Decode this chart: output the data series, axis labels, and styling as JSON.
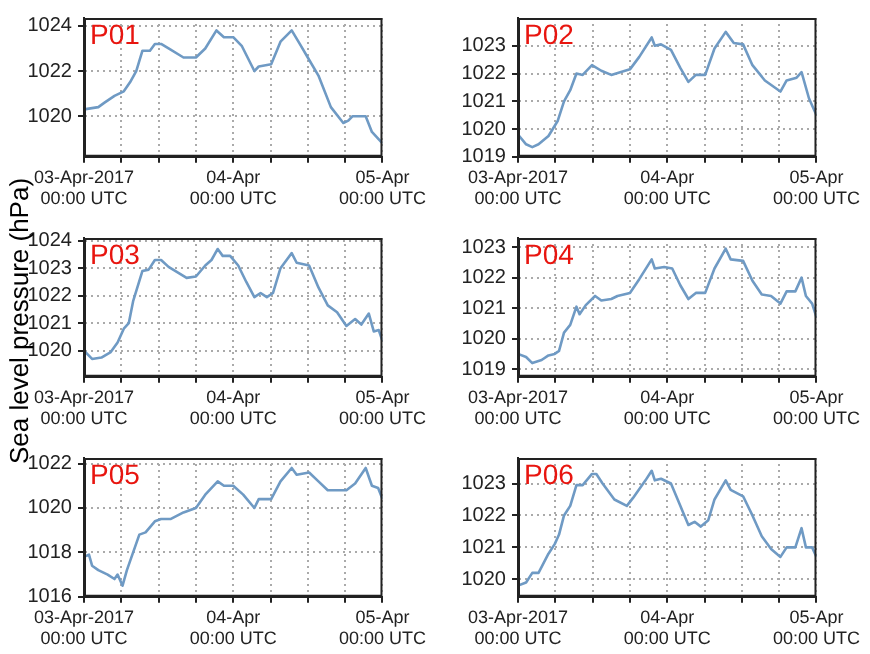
{
  "chart_data": [
    {
      "type": "line",
      "title": "P01",
      "color": "#6f9ac4",
      "grid": true,
      "xlim": [
        "2017-04-03T00:00",
        "2017-04-05T00:00"
      ],
      "xticks": [
        {
          "value": "2017-04-03T00:00",
          "label": "03-Apr-2017\n00:00 UTC"
        },
        {
          "value": "2017-04-03T06:00",
          "label": null
        },
        {
          "value": "2017-04-03T12:00",
          "label": null
        },
        {
          "value": "2017-04-03T18:00",
          "label": null
        },
        {
          "value": "2017-04-04T00:00",
          "label": "04-Apr\n00:00 UTC"
        },
        {
          "value": "2017-04-04T06:00",
          "label": null
        },
        {
          "value": "2017-04-04T12:00",
          "label": null
        },
        {
          "value": "2017-04-04T18:00",
          "label": null
        },
        {
          "value": "2017-04-05T00:00",
          "label": "05-Apr\n00:00 UTC"
        }
      ],
      "ylim": [
        1018.2,
        1024.35
      ],
      "yticks": [
        1020,
        1022,
        1024
      ],
      "x": [
        "2017-04-03T00:00",
        "2017-04-03T02:18",
        "2017-04-03T03:18",
        "2017-04-03T04:54",
        "2017-04-03T06:24",
        "2017-04-03T07:24",
        "2017-04-03T08:24",
        "2017-04-03T09:24",
        "2017-04-03T10:36",
        "2017-04-03T11:24",
        "2017-04-03T12:24",
        "2017-04-03T13:36",
        "2017-04-03T16:00",
        "2017-04-03T18:00",
        "2017-04-03T19:30",
        "2017-04-03T21:18",
        "2017-04-03T22:30",
        "2017-04-04T00:00",
        "2017-04-04T01:24",
        "2017-04-04T03:24",
        "2017-04-04T04:06",
        "2017-04-04T06:06",
        "2017-04-04T07:36",
        "2017-04-04T09:24",
        "2017-04-04T10:42",
        "2017-04-04T12:12",
        "2017-04-04T13:42",
        "2017-04-04T15:42",
        "2017-04-04T17:42",
        "2017-04-04T18:30",
        "2017-04-04T19:12",
        "2017-04-04T21:18",
        "2017-04-04T22:18",
        "2017-04-05T00:00"
      ],
      "values": [
        1020.3,
        1020.4,
        1020.6,
        1020.9,
        1021.1,
        1021.5,
        1022.0,
        1022.9,
        1022.9,
        1023.2,
        1023.2,
        1023.0,
        1022.6,
        1022.6,
        1023.0,
        1023.8,
        1023.5,
        1023.5,
        1023.1,
        1022.0,
        1022.2,
        1022.3,
        1023.3,
        1023.8,
        1023.2,
        1022.5,
        1021.8,
        1020.4,
        1019.7,
        1019.8,
        1020.0,
        1020.0,
        1019.3,
        1018.8
      ]
    },
    {
      "type": "line",
      "title": "P02",
      "color": "#6f9ac4",
      "grid": true,
      "xlim": [
        "2017-04-03T00:00",
        "2017-04-05T00:00"
      ],
      "xticks": [
        {
          "value": "2017-04-03T00:00",
          "label": "03-Apr-2017\n00:00 UTC"
        },
        {
          "value": "2017-04-03T06:00",
          "label": null
        },
        {
          "value": "2017-04-03T12:00",
          "label": null
        },
        {
          "value": "2017-04-03T18:00",
          "label": null
        },
        {
          "value": "2017-04-04T00:00",
          "label": "04-Apr\n00:00 UTC"
        },
        {
          "value": "2017-04-04T06:00",
          "label": null
        },
        {
          "value": "2017-04-04T12:00",
          "label": null
        },
        {
          "value": "2017-04-04T18:00",
          "label": null
        },
        {
          "value": "2017-04-05T00:00",
          "label": "05-Apr\n00:00 UTC"
        }
      ],
      "ylim": [
        1019,
        1024
      ],
      "yticks": [
        1019,
        1020,
        1021,
        1022,
        1023
      ],
      "x": [
        "2017-04-03T00:00",
        "2017-04-03T01:18",
        "2017-04-03T02:18",
        "2017-04-03T03:18",
        "2017-04-03T04:54",
        "2017-04-03T06:24",
        "2017-04-03T07:24",
        "2017-04-03T08:24",
        "2017-04-03T09:24",
        "2017-04-03T10:24",
        "2017-04-03T11:54",
        "2017-04-03T13:24",
        "2017-04-03T15:00",
        "2017-04-03T18:00",
        "2017-04-03T19:30",
        "2017-04-03T21:30",
        "2017-04-03T22:00",
        "2017-04-03T23:00",
        "2017-04-04T00:36",
        "2017-04-04T02:06",
        "2017-04-04T03:24",
        "2017-04-04T04:36",
        "2017-04-04T06:06",
        "2017-04-04T07:36",
        "2017-04-04T09:24",
        "2017-04-04T10:42",
        "2017-04-04T12:12",
        "2017-04-04T13:42",
        "2017-04-04T15:42",
        "2017-04-04T18:12",
        "2017-04-04T19:12",
        "2017-04-04T20:48",
        "2017-04-04T21:36",
        "2017-04-04T22:48",
        "2017-04-05T00:00"
      ],
      "values": [
        1019.8,
        1019.45,
        1019.35,
        1019.45,
        1019.75,
        1020.3,
        1021.0,
        1021.4,
        1022.0,
        1021.95,
        1022.3,
        1022.1,
        1021.95,
        1022.15,
        1022.6,
        1023.3,
        1023.0,
        1023.05,
        1022.85,
        1022.2,
        1021.7,
        1021.95,
        1021.95,
        1022.9,
        1023.5,
        1023.1,
        1023.05,
        1022.3,
        1021.75,
        1021.35,
        1021.75,
        1021.85,
        1022.05,
        1021.1,
        1020.5
      ]
    },
    {
      "type": "line",
      "title": "P03",
      "ylabel": "Sea level pressure (hPa)",
      "color": "#6f9ac4",
      "grid": true,
      "xlim": [
        "2017-04-03T00:00",
        "2017-04-05T00:00"
      ],
      "xticks": [
        {
          "value": "2017-04-03T00:00",
          "label": "03-Apr-2017\n00:00 UTC"
        },
        {
          "value": "2017-04-03T06:00",
          "label": null
        },
        {
          "value": "2017-04-03T12:00",
          "label": null
        },
        {
          "value": "2017-04-03T18:00",
          "label": null
        },
        {
          "value": "2017-04-04T00:00",
          "label": "04-Apr\n00:00 UTC"
        },
        {
          "value": "2017-04-04T06:00",
          "label": null
        },
        {
          "value": "2017-04-04T12:00",
          "label": null
        },
        {
          "value": "2017-04-04T18:00",
          "label": null
        },
        {
          "value": "2017-04-05T00:00",
          "label": "05-Apr\n00:00 UTC"
        }
      ],
      "ylim": [
        1019.05,
        1024.1
      ],
      "yticks": [
        1020,
        1021,
        1022,
        1023,
        1024
      ],
      "x": [
        "2017-04-03T00:00",
        "2017-04-03T01:18",
        "2017-04-03T02:48",
        "2017-04-03T04:18",
        "2017-04-03T05:24",
        "2017-04-03T06:24",
        "2017-04-03T07:12",
        "2017-04-03T07:54",
        "2017-04-03T09:24",
        "2017-04-03T10:24",
        "2017-04-03T11:24",
        "2017-04-03T12:24",
        "2017-04-03T13:36",
        "2017-04-03T16:30",
        "2017-04-03T18:00",
        "2017-04-03T19:30",
        "2017-04-03T20:30",
        "2017-04-03T21:30",
        "2017-04-03T22:18",
        "2017-04-03T23:30",
        "2017-04-04T00:48",
        "2017-04-04T02:06",
        "2017-04-04T03:24",
        "2017-04-04T04:24",
        "2017-04-04T05:24",
        "2017-04-04T06:24",
        "2017-04-04T07:36",
        "2017-04-04T09:24",
        "2017-04-04T10:12",
        "2017-04-04T12:12",
        "2017-04-04T13:42",
        "2017-04-04T15:12",
        "2017-04-04T16:42",
        "2017-04-04T18:12",
        "2017-04-04T19:36",
        "2017-04-04T20:36",
        "2017-04-04T21:48",
        "2017-04-04T22:36",
        "2017-04-04T23:24",
        "2017-04-05T00:00"
      ],
      "values": [
        1020.0,
        1019.7,
        1019.75,
        1019.95,
        1020.3,
        1020.8,
        1021.0,
        1021.8,
        1022.9,
        1022.95,
        1023.3,
        1023.3,
        1023.05,
        1022.65,
        1022.7,
        1023.1,
        1023.3,
        1023.7,
        1023.45,
        1023.45,
        1023.1,
        1022.5,
        1021.95,
        1022.1,
        1021.95,
        1022.1,
        1023.0,
        1023.55,
        1023.2,
        1023.1,
        1022.3,
        1021.65,
        1021.4,
        1020.9,
        1021.15,
        1020.95,
        1021.35,
        1020.7,
        1020.75,
        1020.35
      ]
    },
    {
      "type": "line",
      "title": "P04",
      "color": "#6f9ac4",
      "grid": true,
      "xlim": [
        "2017-04-03T00:00",
        "2017-04-05T00:00"
      ],
      "xticks": [
        {
          "value": "2017-04-03T00:00",
          "label": "03-Apr-2017\n00:00 UTC"
        },
        {
          "value": "2017-04-03T06:00",
          "label": null
        },
        {
          "value": "2017-04-03T12:00",
          "label": null
        },
        {
          "value": "2017-04-03T18:00",
          "label": null
        },
        {
          "value": "2017-04-04T00:00",
          "label": "04-Apr\n00:00 UTC"
        },
        {
          "value": "2017-04-04T06:00",
          "label": null
        },
        {
          "value": "2017-04-04T12:00",
          "label": null
        },
        {
          "value": "2017-04-04T18:00",
          "label": null
        },
        {
          "value": "2017-04-05T00:00",
          "label": "05-Apr\n00:00 UTC"
        }
      ],
      "ylim": [
        1018.75,
        1023.3
      ],
      "yticks": [
        1019,
        1020,
        1021,
        1022,
        1023
      ],
      "x": [
        "2017-04-03T00:00",
        "2017-04-03T01:18",
        "2017-04-03T02:18",
        "2017-04-03T03:48",
        "2017-04-03T04:54",
        "2017-04-03T05:54",
        "2017-04-03T06:36",
        "2017-04-03T07:24",
        "2017-04-03T08:24",
        "2017-04-03T09:24",
        "2017-04-03T09:54",
        "2017-04-03T10:54",
        "2017-04-03T12:24",
        "2017-04-03T13:24",
        "2017-04-03T15:00",
        "2017-04-03T16:00",
        "2017-04-03T18:00",
        "2017-04-03T19:30",
        "2017-04-03T21:30",
        "2017-04-03T22:00",
        "2017-04-03T23:30",
        "2017-04-04T00:48",
        "2017-04-04T02:06",
        "2017-04-04T03:24",
        "2017-04-04T04:36",
        "2017-04-04T06:06",
        "2017-04-04T07:36",
        "2017-04-04T09:24",
        "2017-04-04T10:12",
        "2017-04-04T12:12",
        "2017-04-04T13:42",
        "2017-04-04T15:12",
        "2017-04-04T16:42",
        "2017-04-04T18:12",
        "2017-04-04T19:12",
        "2017-04-04T20:36",
        "2017-04-04T21:36",
        "2017-04-04T22:18",
        "2017-04-04T23:18",
        "2017-04-05T00:00"
      ],
      "values": [
        1019.5,
        1019.4,
        1019.2,
        1019.3,
        1019.45,
        1019.5,
        1019.6,
        1020.2,
        1020.45,
        1021.05,
        1020.8,
        1021.1,
        1021.4,
        1021.25,
        1021.3,
        1021.4,
        1021.5,
        1021.95,
        1022.6,
        1022.3,
        1022.35,
        1022.3,
        1021.75,
        1021.3,
        1021.5,
        1021.5,
        1022.3,
        1022.95,
        1022.6,
        1022.55,
        1021.9,
        1021.45,
        1021.4,
        1021.15,
        1021.55,
        1021.55,
        1022.0,
        1021.4,
        1021.15,
        1020.7
      ]
    },
    {
      "type": "line",
      "title": "P05",
      "color": "#6f9ac4",
      "grid": true,
      "xlim": [
        "2017-04-03T00:00",
        "2017-04-05T00:00"
      ],
      "xticks": [
        {
          "value": "2017-04-03T00:00",
          "label": "03-Apr-2017\n00:00 UTC"
        },
        {
          "value": "2017-04-03T06:00",
          "label": null
        },
        {
          "value": "2017-04-03T12:00",
          "label": null
        },
        {
          "value": "2017-04-03T18:00",
          "label": null
        },
        {
          "value": "2017-04-04T00:00",
          "label": "04-Apr\n00:00 UTC"
        },
        {
          "value": "2017-04-04T06:00",
          "label": null
        },
        {
          "value": "2017-04-04T12:00",
          "label": null
        },
        {
          "value": "2017-04-04T18:00",
          "label": null
        },
        {
          "value": "2017-04-05T00:00",
          "label": "05-Apr\n00:00 UTC"
        }
      ],
      "ylim": [
        1016,
        1022.25
      ],
      "yticks": [
        1016,
        1018,
        1020,
        1022
      ],
      "x": [
        "2017-04-03T00:00",
        "2017-04-03T00:48",
        "2017-04-03T01:18",
        "2017-04-03T02:18",
        "2017-04-03T03:48",
        "2017-04-03T04:54",
        "2017-04-03T05:24",
        "2017-04-03T06:12",
        "2017-04-03T06:54",
        "2017-04-03T07:54",
        "2017-04-03T08:54",
        "2017-04-03T09:54",
        "2017-04-03T11:24",
        "2017-04-03T12:24",
        "2017-04-03T13:54",
        "2017-04-03T16:00",
        "2017-04-03T18:00",
        "2017-04-03T19:30",
        "2017-04-03T21:30",
        "2017-04-03T22:30",
        "2017-04-04T00:00",
        "2017-04-04T01:36",
        "2017-04-04T03:24",
        "2017-04-04T04:06",
        "2017-04-04T06:06",
        "2017-04-04T07:36",
        "2017-04-04T09:24",
        "2017-04-04T10:12",
        "2017-04-04T12:12",
        "2017-04-04T13:42",
        "2017-04-04T15:12",
        "2017-04-04T18:12",
        "2017-04-04T19:36",
        "2017-04-04T21:18",
        "2017-04-04T22:18",
        "2017-04-04T23:18",
        "2017-04-05T00:00"
      ],
      "values": [
        1017.8,
        1017.9,
        1017.4,
        1017.2,
        1017.0,
        1016.8,
        1017.0,
        1016.5,
        1017.2,
        1018.0,
        1018.8,
        1018.9,
        1019.4,
        1019.5,
        1019.5,
        1019.8,
        1020.0,
        1020.6,
        1021.2,
        1021.0,
        1021.0,
        1020.6,
        1020.0,
        1020.4,
        1020.4,
        1021.2,
        1021.8,
        1021.5,
        1021.6,
        1021.2,
        1020.8,
        1020.8,
        1021.1,
        1021.8,
        1021.0,
        1020.9,
        1020.4
      ]
    },
    {
      "type": "line",
      "title": "P06",
      "color": "#6f9ac4",
      "grid": true,
      "xlim": [
        "2017-04-03T00:00",
        "2017-04-05T00:00"
      ],
      "xticks": [
        {
          "value": "2017-04-03T00:00",
          "label": "03-Apr-2017\n00:00 UTC"
        },
        {
          "value": "2017-04-03T06:00",
          "label": null
        },
        {
          "value": "2017-04-03T12:00",
          "label": null
        },
        {
          "value": "2017-04-03T18:00",
          "label": null
        },
        {
          "value": "2017-04-04T00:00",
          "label": "04-Apr\n00:00 UTC"
        },
        {
          "value": "2017-04-04T06:00",
          "label": null
        },
        {
          "value": "2017-04-04T12:00",
          "label": null
        },
        {
          "value": "2017-04-04T18:00",
          "label": null
        },
        {
          "value": "2017-04-05T00:00",
          "label": "05-Apr\n00:00 UTC"
        }
      ],
      "ylim": [
        1019.45,
        1023.8
      ],
      "yticks": [
        1020,
        1021,
        1022,
        1023
      ],
      "x": [
        "2017-04-03T00:00",
        "2017-04-03T01:18",
        "2017-04-03T02:18",
        "2017-04-03T03:18",
        "2017-04-03T04:54",
        "2017-04-03T05:54",
        "2017-04-03T06:36",
        "2017-04-03T07:24",
        "2017-04-03T08:24",
        "2017-04-03T09:24",
        "2017-04-03T10:24",
        "2017-04-03T11:54",
        "2017-04-03T12:36",
        "2017-04-03T13:36",
        "2017-04-03T15:30",
        "2017-04-03T17:30",
        "2017-04-03T18:30",
        "2017-04-03T20:30",
        "2017-04-03T21:30",
        "2017-04-03T22:00",
        "2017-04-03T23:00",
        "2017-04-04T00:36",
        "2017-04-04T02:06",
        "2017-04-04T03:24",
        "2017-04-04T04:24",
        "2017-04-04T05:24",
        "2017-04-04T06:36",
        "2017-04-04T07:36",
        "2017-04-04T09:24",
        "2017-04-04T10:12",
        "2017-04-04T12:12",
        "2017-04-04T13:42",
        "2017-04-04T15:12",
        "2017-04-04T16:42",
        "2017-04-04T18:12",
        "2017-04-04T19:12",
        "2017-04-04T20:36",
        "2017-04-04T21:36",
        "2017-04-04T22:18",
        "2017-04-04T23:18",
        "2017-04-05T00:00"
      ],
      "values": [
        1019.8,
        1019.9,
        1020.2,
        1020.2,
        1020.8,
        1021.1,
        1021.4,
        1022.0,
        1022.3,
        1022.95,
        1022.95,
        1023.3,
        1023.3,
        1023.0,
        1022.5,
        1022.3,
        1022.55,
        1023.1,
        1023.4,
        1023.1,
        1023.15,
        1023.0,
        1022.3,
        1021.7,
        1021.8,
        1021.65,
        1021.85,
        1022.5,
        1023.1,
        1022.8,
        1022.6,
        1022.0,
        1021.35,
        1020.95,
        1020.7,
        1021.0,
        1021.0,
        1021.6,
        1021.0,
        1021.0,
        1020.7
      ]
    }
  ]
}
